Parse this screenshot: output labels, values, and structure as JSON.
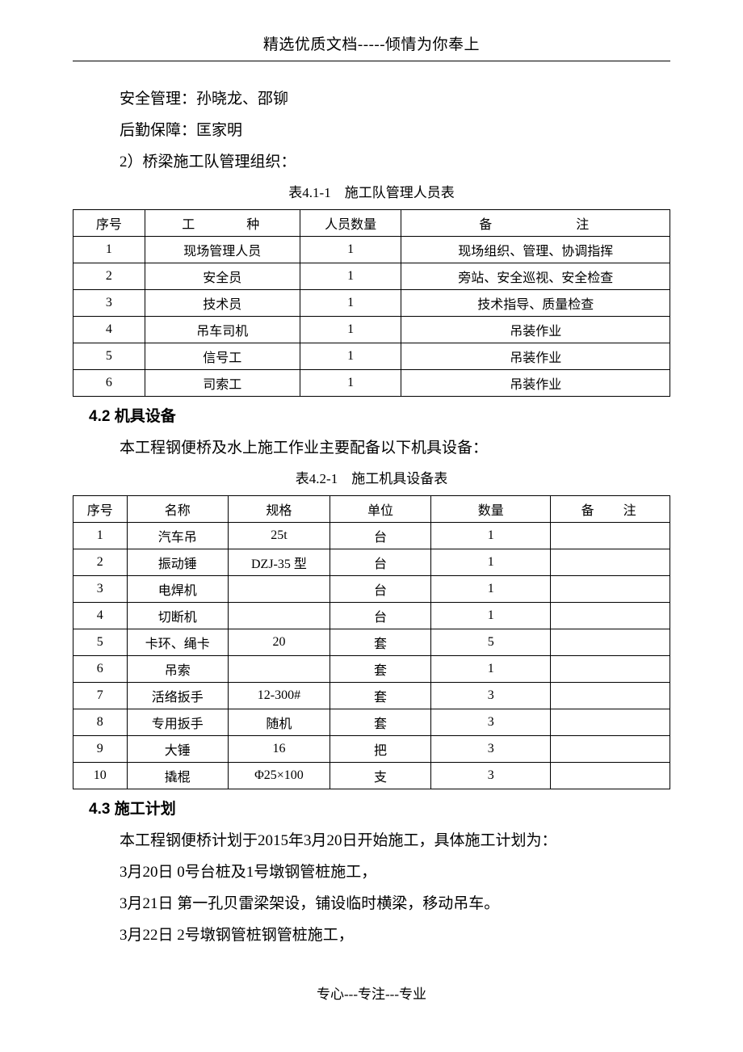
{
  "header": "精选优质文档-----倾情为你奉上",
  "lines_top": [
    "安全管理：孙晓龙、邵铆",
    "后勤保障：匡家明",
    "2）桥梁施工队管理组织："
  ],
  "table1": {
    "caption": "表4.1-1　施工队管理人员表",
    "headers": [
      "序号",
      "工　种",
      "人员数量",
      "备　注"
    ],
    "rows": [
      [
        "1",
        "现场管理人员",
        "1",
        "现场组织、管理、协调指挥"
      ],
      [
        "2",
        "安全员",
        "1",
        "旁站、安全巡视、安全检查"
      ],
      [
        "3",
        "技术员",
        "1",
        "技术指导、质量检查"
      ],
      [
        "4",
        "吊车司机",
        "1",
        "吊装作业"
      ],
      [
        "5",
        "信号工",
        "1",
        "吊装作业"
      ],
      [
        "6",
        "司索工",
        "1",
        "吊装作业"
      ]
    ]
  },
  "section42": {
    "title": "4.2 机具设备"
  },
  "line_42": "本工程钢便桥及水上施工作业主要配备以下机具设备：",
  "table2": {
    "caption": "表4.2-1　施工机具设备表",
    "headers": [
      "序号",
      "名称",
      "规格",
      "单位",
      "数量",
      "备　注"
    ],
    "rows": [
      [
        "1",
        "汽车吊",
        "25t",
        "台",
        "1",
        ""
      ],
      [
        "2",
        "振动锤",
        "DZJ-35 型",
        "台",
        "1",
        ""
      ],
      [
        "3",
        "电焊机",
        "",
        "台",
        "1",
        ""
      ],
      [
        "4",
        "切断机",
        "",
        "台",
        "1",
        ""
      ],
      [
        "5",
        "卡环、绳卡",
        "20",
        "套",
        "5",
        ""
      ],
      [
        "6",
        "吊索",
        "",
        "套",
        "1",
        ""
      ],
      [
        "7",
        "活络扳手",
        "12-300#",
        "套",
        "3",
        ""
      ],
      [
        "8",
        "专用扳手",
        "随机",
        "套",
        "3",
        ""
      ],
      [
        "9",
        "大锤",
        "16",
        "把",
        "3",
        ""
      ],
      [
        "10",
        "撬棍",
        "Φ25×100",
        "支",
        "3",
        ""
      ]
    ]
  },
  "section43": {
    "title": "4.3 施工计划"
  },
  "lines_43": [
    "本工程钢便桥计划于2015年3月20日开始施工，具体施工计划为：",
    "3月20日 0号台桩及1号墩钢管桩施工，",
    "3月21日 第一孔贝雷梁架设，铺设临时横梁，移动吊车。",
    "3月22日 2号墩钢管桩钢管桩施工，"
  ],
  "footer": "专心---专注---专业"
}
